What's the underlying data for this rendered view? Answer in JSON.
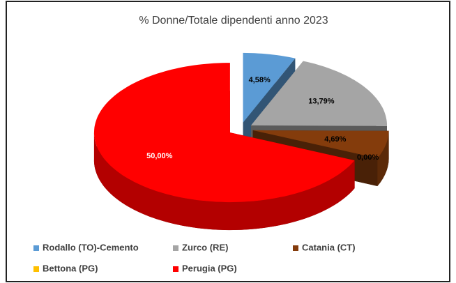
{
  "chart_data": {
    "type": "pie",
    "title": "% Donne/Totale dipendenti anno 2023",
    "categories": [
      "Rodallo (TO)-Cemento",
      "Zurco (RE)",
      "Catania (CT)",
      "Bettona (PG)",
      "Perugia (PG)"
    ],
    "values": [
      4.58,
      13.79,
      4.69,
      0.0,
      50.0
    ],
    "value_labels": [
      "4,58%",
      "13,79%",
      "4,69%",
      "0,00%",
      "50,00%"
    ],
    "colors": [
      "#5b9bd5",
      "#a5a5a5",
      "#843c0c",
      "#ffc000",
      "#ff0000"
    ],
    "legend": "bottom"
  }
}
